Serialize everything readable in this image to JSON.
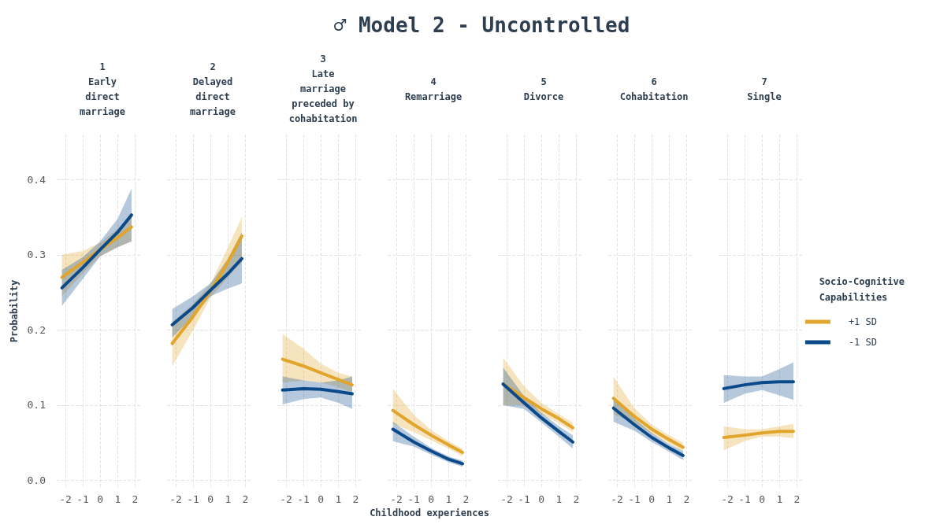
{
  "chart_data": [
    {
      "type": "line",
      "subtitle": "1\nEarly\ndirect\nmarriage",
      "ylabel": "Probability",
      "x": [
        -2.2,
        -1,
        0,
        1,
        1.8
      ],
      "xlim": [
        -2.5,
        2.3
      ],
      "xticks": [
        -2,
        -1,
        0,
        1,
        2
      ],
      "ylim": [
        -0.01,
        0.46
      ],
      "yticks": [
        {
          "value": 0,
          "label": "0.0"
        },
        0.1,
        0.2,
        0.3,
        0.4
      ],
      "grid": true,
      "series": [
        {
          "color": "#e0a52a",
          "values": [
            0.27,
            0.29,
            0.307,
            0.323,
            0.337
          ],
          "lower": [
            0.245,
            0.275,
            0.298,
            0.31,
            0.318
          ],
          "upper": [
            0.3,
            0.305,
            0.316,
            0.335,
            0.352
          ]
        },
        {
          "color": "#0b4a8a",
          "values": [
            0.256,
            0.283,
            0.307,
            0.33,
            0.353
          ],
          "lower": [
            0.232,
            0.268,
            0.298,
            0.31,
            0.318
          ],
          "upper": [
            0.28,
            0.297,
            0.318,
            0.348,
            0.388
          ]
        }
      ]
    },
    {
      "type": "line",
      "subtitle": "2\nDelayed\ndirect\nmarriage",
      "x": [
        -2.2,
        -1,
        0,
        1,
        1.8
      ],
      "xlim": [
        -2.5,
        2.3
      ],
      "xticks": [
        -2,
        -1,
        0,
        1,
        2
      ],
      "ylim": [
        -0.01,
        0.46
      ],
      "yticks": [
        0,
        0.1,
        0.2,
        0.3,
        0.4
      ],
      "grid": true,
      "tick_labels": "x",
      "series": [
        {
          "color": "#e0a52a",
          "values": [
            0.182,
            0.218,
            0.252,
            0.29,
            0.325
          ],
          "lower": [
            0.152,
            0.2,
            0.243,
            0.27,
            0.29
          ],
          "upper": [
            0.21,
            0.235,
            0.262,
            0.31,
            0.35
          ]
        },
        {
          "color": "#0b4a8a",
          "values": [
            0.207,
            0.23,
            0.253,
            0.275,
            0.295
          ],
          "lower": [
            0.19,
            0.218,
            0.245,
            0.255,
            0.262
          ],
          "upper": [
            0.228,
            0.245,
            0.262,
            0.295,
            0.33
          ]
        }
      ]
    },
    {
      "type": "line",
      "subtitle": "3\nLate\nmarriage\npreceded by\ncohabitation",
      "x": [
        -2.2,
        -1,
        0,
        1,
        1.8
      ],
      "xlim": [
        -2.5,
        2.3
      ],
      "xticks": [
        -2,
        -1,
        0,
        1,
        2
      ],
      "ylim": [
        -0.01,
        0.46
      ],
      "yticks": [
        0,
        0.1,
        0.2,
        0.3,
        0.4
      ],
      "grid": true,
      "tick_labels": "x",
      "series": [
        {
          "color": "#e0a52a",
          "values": [
            0.161,
            0.152,
            0.143,
            0.134,
            0.127
          ],
          "lower": [
            0.13,
            0.133,
            0.13,
            0.124,
            0.117
          ],
          "upper": [
            0.195,
            0.175,
            0.155,
            0.143,
            0.138
          ]
        },
        {
          "color": "#0b4a8a",
          "values": [
            0.12,
            0.122,
            0.121,
            0.118,
            0.115
          ],
          "lower": [
            0.101,
            0.108,
            0.11,
            0.103,
            0.095
          ],
          "upper": [
            0.138,
            0.133,
            0.13,
            0.133,
            0.138
          ]
        }
      ]
    },
    {
      "type": "line",
      "title": "♂ Model 2 - Uncontrolled",
      "subtitle": "4\nRemarriage",
      "xlabel": "Childhood experiences",
      "x": [
        -2.2,
        -1,
        0,
        1,
        1.8
      ],
      "xlim": [
        -2.5,
        2.3
      ],
      "xticks": [
        -2,
        -1,
        0,
        1,
        2
      ],
      "ylim": [
        -0.01,
        0.46
      ],
      "yticks": [
        0,
        0.1,
        0.2,
        0.3,
        0.4
      ],
      "grid": true,
      "tick_labels": "x",
      "series": [
        {
          "color": "#e0a52a",
          "values": [
            0.093,
            0.074,
            0.06,
            0.047,
            0.037
          ],
          "lower": [
            0.075,
            0.064,
            0.053,
            0.042,
            0.032
          ],
          "upper": [
            0.122,
            0.087,
            0.067,
            0.052,
            0.042
          ]
        },
        {
          "color": "#0b4a8a",
          "values": [
            0.068,
            0.051,
            0.039,
            0.028,
            0.022
          ],
          "lower": [
            0.052,
            0.045,
            0.034,
            0.024,
            0.018
          ],
          "upper": [
            0.078,
            0.058,
            0.043,
            0.032,
            0.026
          ]
        }
      ]
    },
    {
      "type": "line",
      "subtitle": "5\nDivorce",
      "x": [
        -2.2,
        -1,
        0,
        1,
        1.8
      ],
      "xlim": [
        -2.5,
        2.3
      ],
      "xticks": [
        -2,
        -1,
        0,
        1,
        2
      ],
      "ylim": [
        -0.01,
        0.46
      ],
      "yticks": [
        0,
        0.1,
        0.2,
        0.3,
        0.4
      ],
      "grid": true,
      "tick_labels": "x",
      "series": [
        {
          "color": "#e0a52a",
          "values": [
            0.128,
            0.11,
            0.095,
            0.082,
            0.07
          ],
          "lower": [
            0.1,
            0.1,
            0.088,
            0.076,
            0.064
          ],
          "upper": [
            0.163,
            0.125,
            0.103,
            0.088,
            0.077
          ]
        },
        {
          "color": "#0b4a8a",
          "values": [
            0.128,
            0.103,
            0.083,
            0.065,
            0.051
          ],
          "lower": [
            0.1,
            0.095,
            0.077,
            0.058,
            0.042
          ],
          "upper": [
            0.15,
            0.112,
            0.09,
            0.072,
            0.06
          ]
        }
      ]
    },
    {
      "type": "line",
      "subtitle": "6\nCohabitation",
      "x": [
        -2.2,
        -1,
        0,
        1,
        1.8
      ],
      "xlim": [
        -2.5,
        2.3
      ],
      "xticks": [
        -2,
        -1,
        0,
        1,
        2
      ],
      "ylim": [
        -0.01,
        0.46
      ],
      "yticks": [
        0,
        0.1,
        0.2,
        0.3,
        0.4
      ],
      "grid": true,
      "tick_labels": "x",
      "series": [
        {
          "color": "#e0a52a",
          "values": [
            0.109,
            0.085,
            0.068,
            0.054,
            0.044
          ],
          "lower": [
            0.088,
            0.076,
            0.062,
            0.049,
            0.039
          ],
          "upper": [
            0.138,
            0.096,
            0.074,
            0.06,
            0.05
          ]
        },
        {
          "color": "#0b4a8a",
          "values": [
            0.096,
            0.074,
            0.057,
            0.043,
            0.033
          ],
          "lower": [
            0.078,
            0.066,
            0.051,
            0.038,
            0.027
          ],
          "upper": [
            0.112,
            0.082,
            0.063,
            0.048,
            0.039
          ]
        }
      ]
    },
    {
      "type": "line",
      "subtitle": "7\nSingle",
      "legend_title": "Socio-Cognitive\nCapabilities",
      "legend": "right",
      "x": [
        -2.2,
        -1,
        0,
        1,
        1.8
      ],
      "xlim": [
        -2.5,
        2.3
      ],
      "xticks": [
        -2,
        -1,
        0,
        1,
        2
      ],
      "ylim": [
        -0.01,
        0.46
      ],
      "yticks": [
        0,
        0.1,
        0.2,
        0.3,
        0.4
      ],
      "grid": true,
      "tick_labels": "x",
      "series": [
        {
          "name": "+1 SD",
          "color": "#e0a52a",
          "values": [
            0.057,
            0.06,
            0.063,
            0.065,
            0.065
          ],
          "lower": [
            0.04,
            0.052,
            0.058,
            0.058,
            0.056
          ],
          "upper": [
            0.072,
            0.068,
            0.068,
            0.072,
            0.075
          ]
        },
        {
          "name": "-1 SD",
          "color": "#0b4a8a",
          "values": [
            0.122,
            0.127,
            0.13,
            0.131,
            0.131
          ],
          "lower": [
            0.103,
            0.115,
            0.12,
            0.113,
            0.107
          ],
          "upper": [
            0.14,
            0.138,
            0.138,
            0.148,
            0.157
          ]
        }
      ]
    }
  ]
}
